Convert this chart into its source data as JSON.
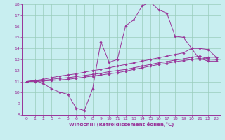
{
  "xlabel": "Windchill (Refroidissement éolien,°C)",
  "xlim": [
    -0.5,
    23.5
  ],
  "ylim": [
    8,
    18
  ],
  "xticks": [
    0,
    1,
    2,
    3,
    4,
    5,
    6,
    7,
    8,
    9,
    10,
    11,
    12,
    13,
    14,
    15,
    16,
    17,
    18,
    19,
    20,
    21,
    22,
    23
  ],
  "yticks": [
    8,
    9,
    10,
    11,
    12,
    13,
    14,
    15,
    16,
    17,
    18
  ],
  "bg_color": "#c8eef0",
  "line_color": "#993399",
  "grid_color": "#99ccbb",
  "lines": [
    {
      "x": [
        0,
        1,
        2,
        3,
        4,
        5,
        6,
        7,
        8,
        9,
        10,
        11,
        12,
        13,
        14,
        15,
        16,
        17,
        18,
        19,
        20,
        21,
        22,
        23
      ],
      "y": [
        11.0,
        11.1,
        10.85,
        10.35,
        10.05,
        9.85,
        8.6,
        8.4,
        10.35,
        14.6,
        12.75,
        13.0,
        16.05,
        16.6,
        17.85,
        18.2,
        17.5,
        17.2,
        15.1,
        15.0,
        14.0,
        13.0,
        13.2,
        13.2
      ]
    },
    {
      "x": [
        0,
        1,
        2,
        3,
        4,
        5,
        6,
        7,
        8,
        9,
        10,
        11,
        12,
        13,
        14,
        15,
        16,
        17,
        18,
        19,
        20,
        21,
        22,
        23
      ],
      "y": [
        11.0,
        11.1,
        11.2,
        11.35,
        11.5,
        11.6,
        11.7,
        11.85,
        12.0,
        12.1,
        12.25,
        12.4,
        12.55,
        12.7,
        12.85,
        13.0,
        13.15,
        13.3,
        13.45,
        13.6,
        14.0,
        14.0,
        13.9,
        13.2
      ]
    },
    {
      "x": [
        0,
        1,
        2,
        3,
        4,
        5,
        6,
        7,
        8,
        9,
        10,
        11,
        12,
        13,
        14,
        15,
        16,
        17,
        18,
        19,
        20,
        21,
        22,
        23
      ],
      "y": [
        11.0,
        11.05,
        11.1,
        11.2,
        11.3,
        11.35,
        11.45,
        11.55,
        11.65,
        11.75,
        11.9,
        12.0,
        12.1,
        12.25,
        12.4,
        12.55,
        12.7,
        12.8,
        12.95,
        13.05,
        13.2,
        13.3,
        13.05,
        13.0
      ]
    },
    {
      "x": [
        0,
        1,
        2,
        3,
        4,
        5,
        6,
        7,
        8,
        9,
        10,
        11,
        12,
        13,
        14,
        15,
        16,
        17,
        18,
        19,
        20,
        21,
        22,
        23
      ],
      "y": [
        11.0,
        11.0,
        11.05,
        11.1,
        11.15,
        11.2,
        11.3,
        11.4,
        11.5,
        11.6,
        11.7,
        11.8,
        11.95,
        12.1,
        12.25,
        12.4,
        12.55,
        12.65,
        12.8,
        12.9,
        13.0,
        13.1,
        12.85,
        12.85
      ]
    }
  ]
}
